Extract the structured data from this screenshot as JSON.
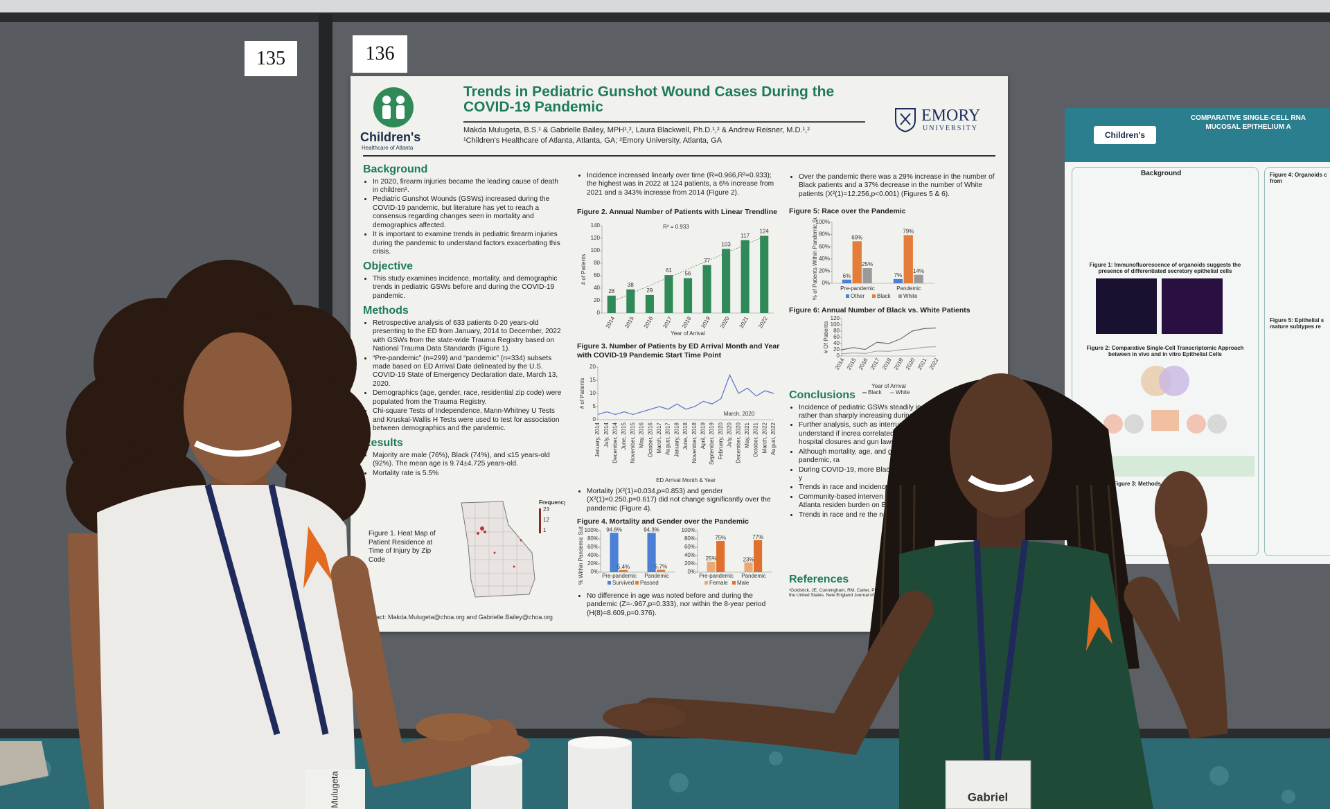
{
  "boards": {
    "left_number": "135",
    "right_number": "136"
  },
  "poster": {
    "logo": {
      "name": "Children's",
      "tagline": "Healthcare of Atlanta"
    },
    "title": "Trends in Pediatric Gunshot Wound Cases During the COVID-19 Pandemic",
    "authors": "Makda Mulugeta, B.S.¹ & Gabrielle Bailey, MPH¹,², Laura Blackwell, Ph.D.¹,² & Andrew Reisner, M.D.¹,²",
    "affiliations": "¹Children's Healthcare of Atlanta, Atlanta, GA; ²Emory University, Atlanta, GA",
    "emory": {
      "name": "EMORY",
      "tagline": "UNIVERSITY"
    },
    "background": {
      "heading": "Background",
      "bullets": [
        "In 2020, firearm injuries became the leading cause of death in children¹.",
        "Pediatric Gunshot Wounds (GSWs) increased during the COVID-19 pandemic, but literature has yet to reach a consensus regarding changes seen in mortality and demographics affected.",
        "It is important to examine trends in pediatric firearm injuries during the pandemic to understand factors exacerbating this crisis."
      ]
    },
    "objective": {
      "heading": "Objective",
      "bullets": [
        "This study examines incidence, mortality, and demographic trends in pediatric GSWs before and during the COVID-19 pandemic."
      ]
    },
    "methods": {
      "heading": "Methods",
      "bullets": [
        "Retrospective analysis of 633 patients 0-20 years-old presenting to the ED from January, 2014 to December, 2022 with GSWs from the state-wide Trauma Registry based on National Trauma Data Standards (Figure 1).",
        "“Pre-pandemic” (n=299) and “pandemic” (n=334) subsets made based on ED Arrival Date delineated by the U.S. COVID-19 State of Emergency Declaration date, March 13, 2020.",
        "Demographics (age, gender, race, residential zip code) were populated from the Trauma Registry.",
        "Chi-square Tests of Independence, Mann-Whitney U Tests and Kruskal-Wallis H Tests were used to test for association between demographics and the pandemic."
      ]
    },
    "results": {
      "heading": "Results",
      "bullets": [
        "Majority are male (76%), Black (74%), and ≤15 years-old (92%). The mean age is 9.74±4.725 years-old.",
        "Mortality rate is 5.5%"
      ]
    },
    "figure1": {
      "caption": "Figure 1. Heat Map of Patient Residence at Time of Injury by Zip Code",
      "legend_title": "Frequency",
      "legend_ticks": [
        23,
        12,
        1
      ]
    },
    "contact": "Contact: Makda.Mulugeta@choa.org and Gabrielle.Bailey@choa.org",
    "incidence_text": [
      "Incidence increased linearly over time (R=0.966,R²=0.933); the highest was in 2022 at 124 patients, a 6% increase from 2021 and a 343% increase from 2014 (Figure 2)."
    ],
    "figure2": {
      "type": "bar",
      "title": "Figure 2. Annual Number of Patients with Linear Trendline",
      "annotation": "R² = 0.933",
      "y_label": "# of Patients",
      "x_label": "Year of Arrival",
      "categories": [
        "2014",
        "2015",
        "2016",
        "2017",
        "2018",
        "2019",
        "2020",
        "2021",
        "2022"
      ],
      "values": [
        28,
        38,
        29,
        61,
        56,
        77,
        103,
        117,
        124
      ],
      "color": "#2f8a57",
      "ylim": [
        0,
        140
      ],
      "yticks": [
        0,
        20,
        40,
        60,
        80,
        100,
        120,
        140
      ],
      "trendline": true
    },
    "figure3": {
      "type": "line",
      "title": "Figure 3. Number of Patients by ED Arrival Month and Year with COVID-19 Pandemic Start Time Point",
      "annotation": "March, 2020",
      "y_label": "# of Patients",
      "x_label": "ED Arrival Month & Year",
      "categories": [
        "January, 2014",
        "July, 2014",
        "December, 2014",
        "June, 2015",
        "November, 2015",
        "May, 2016",
        "October, 2016",
        "March, 2017",
        "August, 2017",
        "January, 2018",
        "June, 2018",
        "November, 2018",
        "April, 2019",
        "September, 2019",
        "February, 2020",
        "July, 2020",
        "December, 2020",
        "May, 2021",
        "October, 2021",
        "March, 2022",
        "August, 2022"
      ],
      "values": [
        2,
        3,
        2,
        3,
        2,
        3,
        4,
        5,
        4,
        6,
        4,
        5,
        7,
        6,
        8,
        17,
        10,
        12,
        9,
        11,
        10
      ],
      "color": "#5a6fc8",
      "ylim": [
        0,
        20
      ],
      "yticks": [
        0,
        5,
        10,
        15,
        20
      ]
    },
    "mortality_text": [
      "Mortality (X²(1)=0.034,p=0.853) and gender (X²(1)=0.250,p=0.617) did not change significantly over the pandemic (Figure 4)."
    ],
    "figure4": {
      "type": "bar",
      "title": "Figure 4. Mortality and Gender over the Pandemic",
      "y_label": "% Within Pandemic Subset",
      "ylim": [
        0,
        100
      ],
      "yticks": [
        {
          "value": 0,
          "label": "0%"
        },
        {
          "value": 20,
          "label": "20%"
        },
        {
          "value": 40,
          "label": "40%"
        },
        {
          "value": 60,
          "label": "60%"
        },
        {
          "value": 80,
          "label": "80%"
        },
        {
          "value": 100,
          "label": "100%"
        }
      ],
      "panels": [
        {
          "categories": [
            "Pre-pandemic",
            "Pandemic"
          ],
          "series": [
            {
              "name": "Survived",
              "color": "#4a80d6",
              "values": [
                94.6,
                94.3
              ],
              "value_labels": [
                "94.6%",
                "94.3%"
              ]
            },
            {
              "name": "Passed",
              "color": "#e47d3a",
              "values": [
                5.4,
                5.7
              ],
              "value_labels": [
                "5.4%",
                "5.7%"
              ]
            }
          ]
        },
        {
          "categories": [
            "Pre-pandemic",
            "Pandemic"
          ],
          "series": [
            {
              "name": "Female",
              "color": "#eba877",
              "values": [
                25,
                23
              ],
              "value_labels": [
                "25%",
                "23%"
              ]
            },
            {
              "name": "Male",
              "color": "#e0702e",
              "values": [
                75,
                77
              ],
              "value_labels": [
                "75%",
                "77%"
              ]
            }
          ]
        }
      ]
    },
    "age_text": [
      "No difference in age was noted before and during the pandemic (Z=-.967,p=0.333), nor within the 8-year period (H(8)=8.609,p=0.376)."
    ],
    "race_text": [
      "Over the pandemic there was a 29% increase in the number of Black patients and a 37% decrease in the number of White patients (X²(1)=12.256,p<0.001) (Figures 5 & 6)."
    ],
    "figure5": {
      "type": "bar",
      "title": "Figure 5: Race over the Pandemic",
      "y_label": "% of Patients Within Pandemic Subset",
      "categories": [
        "Pre-pandemic",
        "Pandemic"
      ],
      "series": [
        {
          "name": "Other",
          "color": "#4a80d6",
          "values": [
            6,
            7
          ],
          "value_labels": [
            "6%",
            "7%"
          ]
        },
        {
          "name": "Black",
          "color": "#e47d3a",
          "values": [
            69,
            79
          ],
          "value_labels": [
            "69%",
            "79%"
          ]
        },
        {
          "name": "White",
          "color": "#9a9a9a",
          "values": [
            25,
            14
          ],
          "value_labels": [
            "25%",
            "14%"
          ]
        }
      ],
      "ylim": [
        0,
        100
      ],
      "yticks": [
        {
          "value": 0,
          "label": "0%"
        },
        {
          "value": 20,
          "label": "20%"
        },
        {
          "value": 40,
          "label": "40%"
        },
        {
          "value": 60,
          "label": "60%"
        },
        {
          "value": 80,
          "label": "80%"
        },
        {
          "value": 100,
          "label": "100%"
        }
      ]
    },
    "figure6": {
      "type": "line",
      "title": "Figure 6: Annual Number of Black vs. White Patients",
      "y_label": "# Of Patients",
      "x_label": "Year of Arrival",
      "categories": [
        "2014",
        "2015",
        "2016",
        "2017",
        "2018",
        "2019",
        "2020",
        "2021",
        "2022"
      ],
      "series": [
        {
          "name": "Black",
          "color": "#6e6e6e",
          "values": [
            20,
            27,
            21,
            44,
            40,
            55,
            80,
            88,
            90
          ]
        },
        {
          "name": "White",
          "color": "#a9a9a9",
          "values": [
            7,
            10,
            8,
            16,
            15,
            20,
            23,
            28,
            30
          ]
        }
      ],
      "ylim": [
        0,
        120
      ],
      "yticks": [
        0,
        20,
        40,
        60,
        80,
        100,
        120
      ]
    },
    "conclusions": {
      "heading": "Conclusions",
      "bullets": [
        "Incidence of pediatric GSWs steadily increasing over time rather than sharply increasing during",
        "Further analysis, such as interrupted time are warranted to understand if increa correlated with the pandemic, or oth hospital closures and gun laws.",
        "Although mortality, age, and gende significantly with the pandemic, ra",
        "During COVID-19, more Black pa patients were injured than in y",
        "Trends in race and incidence for ongoing research as the",
        "Community-based interven study demonstrates highe in metro-Atlanta residen burden on Black patie",
        "Trends in race and re the need for prevent as a public health"
      ]
    },
    "references": {
      "heading": "References",
      "text": "¹Goldstick, JE, Cunningham, RM, Carter, PM. Current Causes of Death in Children and Adolescents in the United States. New England Journal of Medicine."
    }
  },
  "right_poster": {
    "title_lines": [
      "COMPARATIVE SINGLE-CELL RNA",
      "MUCOSAL EPITHELIUM A"
    ],
    "logo": "Children's",
    "background": "Background",
    "figure1": "Figure 1: Immunofluorescence of organoids suggests the presence of differentiated secretory epithelial cells",
    "figure2": "Figure 2: Comparative Single-Cell Transcriptomic Approach between in vivo and in vitro Epithelial Cells",
    "figure3": "Figure 3: Methods & Analysis",
    "figure4": "Figure 4: Organoids c from",
    "figure5": "Figure 5: Epithelial s mature subtypes re"
  },
  "badges": {
    "left": "Mulugeta",
    "right": "Gabriel"
  }
}
